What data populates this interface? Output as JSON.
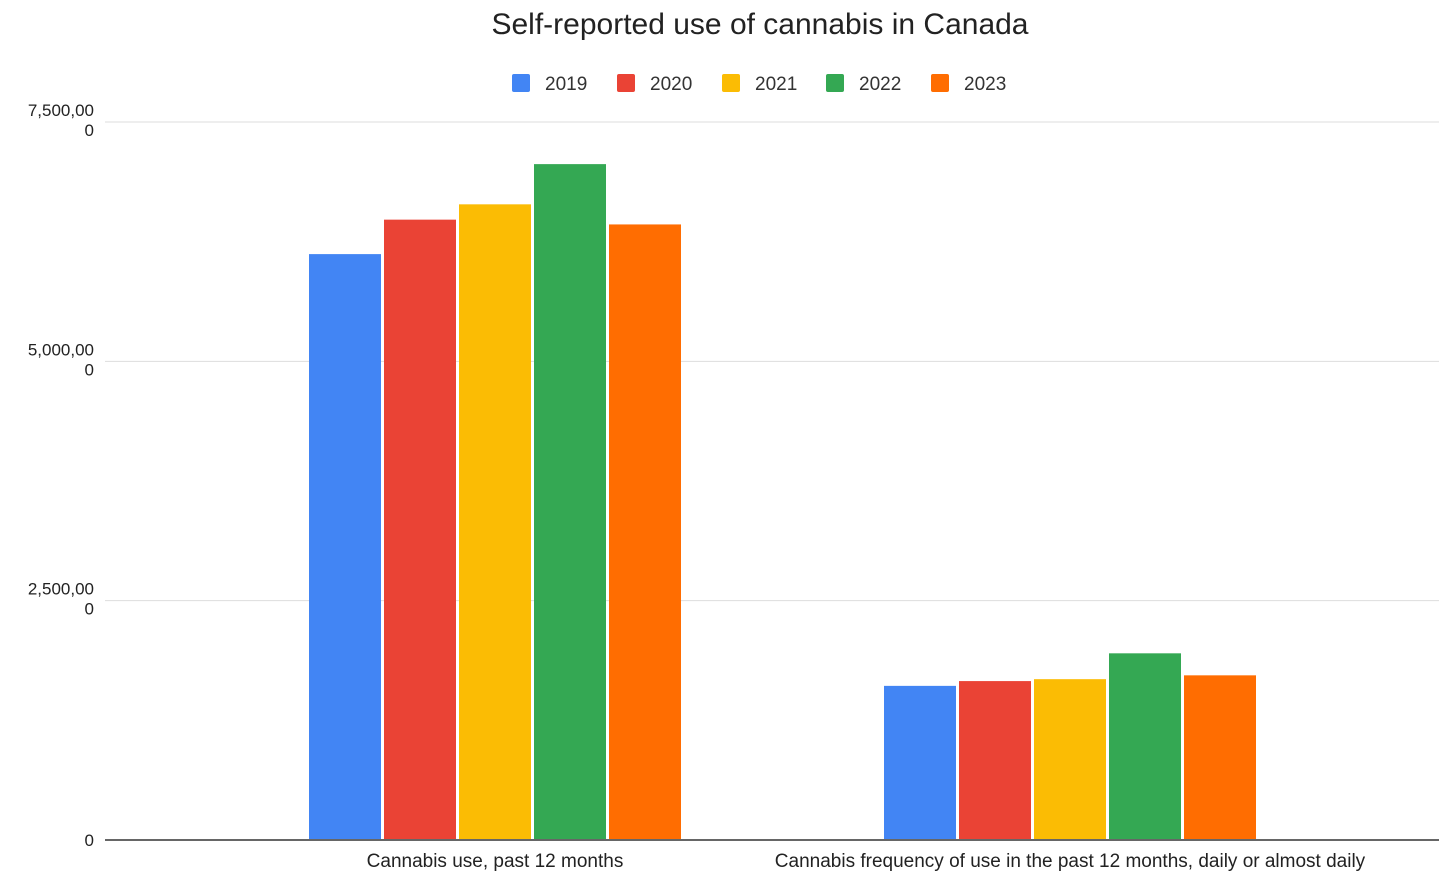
{
  "chart_data": {
    "type": "bar",
    "title": "Self-reported use of cannabis in Canada",
    "xlabel": "",
    "ylabel": "",
    "categories": [
      "Cannabis use, past 12 months",
      "Cannabis frequency of use in the past 12 months, daily or almost daily"
    ],
    "series": [
      {
        "name": "2019",
        "color": "#4285F4",
        "values": [
          6120,
          1610
        ]
      },
      {
        "name": "2020",
        "color": "#EA4335",
        "values": [
          6480,
          1660
        ]
      },
      {
        "name": "2021",
        "color": "#FBBC04",
        "values": [
          6640,
          1680
        ]
      },
      {
        "name": "2022",
        "color": "#34A853",
        "values": [
          7060,
          1950
        ]
      },
      {
        "name": "2023",
        "color": "#FF6D01",
        "values": [
          6430,
          1720
        ]
      }
    ],
    "ylim": [
      0,
      7500
    ],
    "yticks": [
      {
        "value": 0,
        "line1": "0",
        "line2": ""
      },
      {
        "value": 2500,
        "line1": "2,500,00",
        "line2": "0"
      },
      {
        "value": 5000,
        "line1": "5,000,00",
        "line2": "0"
      },
      {
        "value": 7500,
        "line1": "7,500,00",
        "line2": "0"
      }
    ],
    "grid": true,
    "legend_position": "top-center"
  }
}
